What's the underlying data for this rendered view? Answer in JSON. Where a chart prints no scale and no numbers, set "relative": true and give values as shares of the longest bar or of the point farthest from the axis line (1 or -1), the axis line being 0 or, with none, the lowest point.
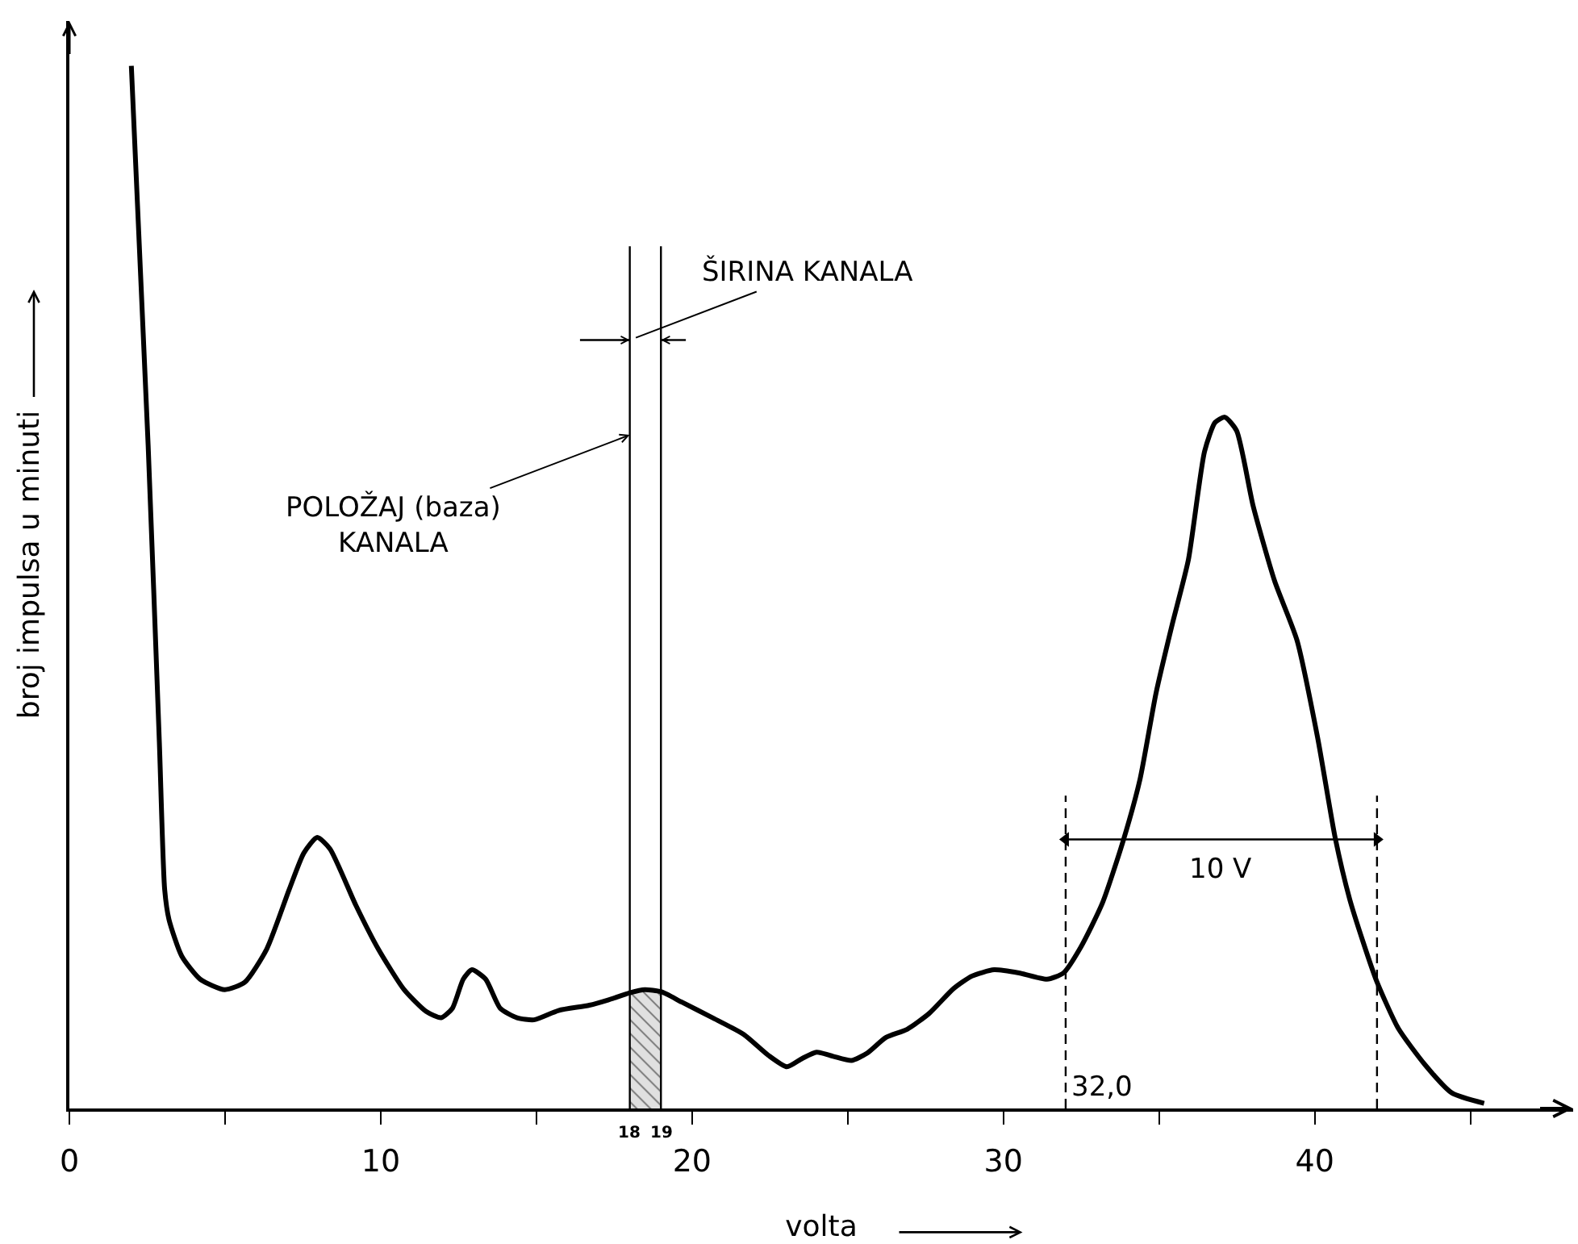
{
  "chart_data": {
    "type": "line",
    "relative": true,
    "xlabel": "volta",
    "ylabel": "broj impulsa u minuti",
    "xlim": [
      0,
      48.3
    ],
    "xticks": [
      0,
      {
        "value": 5,
        "label": null
      },
      10,
      {
        "value": 15,
        "label": null
      },
      20,
      {
        "value": 25,
        "label": null
      },
      30,
      {
        "value": 35,
        "label": null
      },
      40,
      {
        "value": 45,
        "label": null
      }
    ],
    "series": [
      {
        "color": "#000000",
        "x": [
          1.99,
          2.53,
          2.89,
          3.06,
          3.2,
          3.61,
          4.2,
          4.99,
          5.63,
          6.34,
          7.06,
          7.53,
          7.96,
          8.37,
          9.2,
          9.92,
          10.75,
          11.46,
          11.94,
          12.3,
          12.65,
          12.93,
          13.37,
          13.84,
          14.38,
          14.92,
          15.71,
          16.7,
          17.3,
          18,
          18.48,
          19,
          19.67,
          20.66,
          21.66,
          22.45,
          23.05,
          23.54,
          24,
          24.53,
          25.12,
          25.62,
          26.22,
          26.91,
          27.61,
          28.4,
          28.99,
          29.7,
          30.5,
          31.4,
          31.93,
          32.49,
          33.18,
          33.87,
          34.39,
          34.9,
          35.42,
          35.94,
          36.46,
          36.8,
          37.11,
          37.49,
          38.02,
          38.71,
          39.43,
          40.09,
          40.66,
          41.12,
          41.55,
          41.99,
          42.68,
          43.54,
          44.4,
          45.44
        ],
        "values": [
          1,
          0.636,
          0.351,
          0.21,
          0.181,
          0.146,
          0.124,
          0.114,
          0.121,
          0.153,
          0.21,
          0.245,
          0.26,
          0.249,
          0.195,
          0.153,
          0.114,
          0.093,
          0.087,
          0.096,
          0.124,
          0.133,
          0.124,
          0.096,
          0.087,
          0.085,
          0.094,
          0.099,
          0.104,
          0.111,
          0.114,
          0.112,
          0.102,
          0.087,
          0.071,
          0.051,
          0.04,
          0.048,
          0.054,
          0.05,
          0.046,
          0.053,
          0.068,
          0.076,
          0.091,
          0.115,
          0.127,
          0.133,
          0.13,
          0.124,
          0.13,
          0.155,
          0.197,
          0.259,
          0.316,
          0.398,
          0.464,
          0.526,
          0.63,
          0.658,
          0.663,
          0.65,
          0.578,
          0.506,
          0.449,
          0.356,
          0.259,
          0.201,
          0.16,
          0.122,
          0.077,
          0.042,
          0.015,
          0.005
        ]
      },
      {
        "type": "area",
        "color": "#000000",
        "x": [
          18,
          18.48,
          19
        ],
        "values": [
          0.111,
          0.114,
          0.112
        ]
      },
      {
        "type": "line",
        "color": "#000000",
        "x": [
          18,
          18
        ],
        "values": [
          0,
          0.827
        ]
      },
      {
        "type": "line",
        "color": "#000000",
        "x": [
          19,
          19
        ],
        "values": [
          0,
          0.827
        ]
      },
      {
        "type": "line",
        "color": "#000000",
        "x": [
          32,
          32
        ],
        "values": [
          0,
          0.3
        ],
        "line_style": "dashed"
      },
      {
        "type": "line",
        "color": "#000000",
        "x": [
          42,
          42
        ],
        "values": [
          0,
          0.3
        ],
        "line_style": "dashed"
      },
      {
        "type": "line",
        "color": "#000000",
        "x": [
          16.4,
          18
        ],
        "values": [
          0.737,
          0.737
        ]
      },
      {
        "type": "line",
        "color": "#000000",
        "x": [
          19,
          19.8
        ],
        "values": [
          0.737,
          0.737
        ]
      },
      {
        "type": "line",
        "color": "#000000",
        "x": [
          32,
          42
        ],
        "values": [
          0.258,
          0.258
        ],
        "marker": "triangle"
      }
    ],
    "annotations": [
      {
        "text": "ŠIRINA KANALA",
        "x": 18,
        "y": 0.737
      },
      {
        "text": "POLOŽAJ (baza)\nKANALA",
        "x": 18,
        "y": 0.646
      },
      {
        "text": "10 V",
        "x": 37,
        "y": 0.258
      },
      {
        "text": "32,0",
        "x": 32,
        "y": 0
      },
      {
        "text": "18",
        "x": 18,
        "y": 0
      },
      {
        "text": "19",
        "x": 19,
        "y": 0
      }
    ]
  }
}
